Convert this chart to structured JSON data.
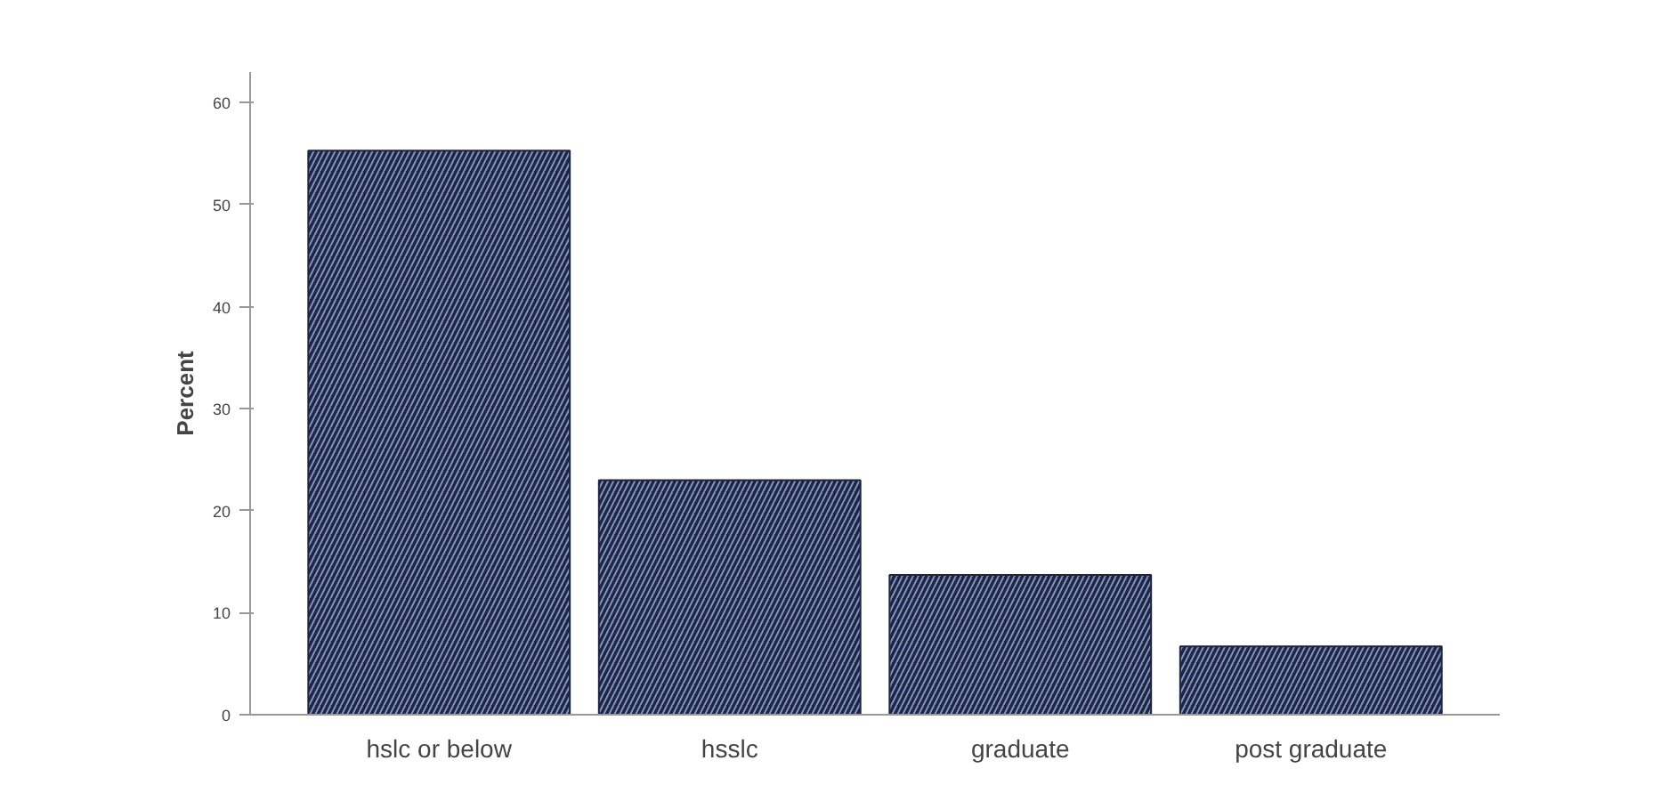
{
  "chart_data": {
    "type": "bar",
    "ylabel": "Percent",
    "categories": [
      "hslc or below",
      "hsslc",
      "graduate",
      "post graduate"
    ],
    "values": [
      55.3,
      23.0,
      13.7,
      6.7
    ],
    "color": "#1e2544",
    "ylim": [
      0,
      63
    ],
    "yticks": [
      0,
      10,
      20,
      30,
      40,
      50,
      60
    ],
    "grid": false
  }
}
